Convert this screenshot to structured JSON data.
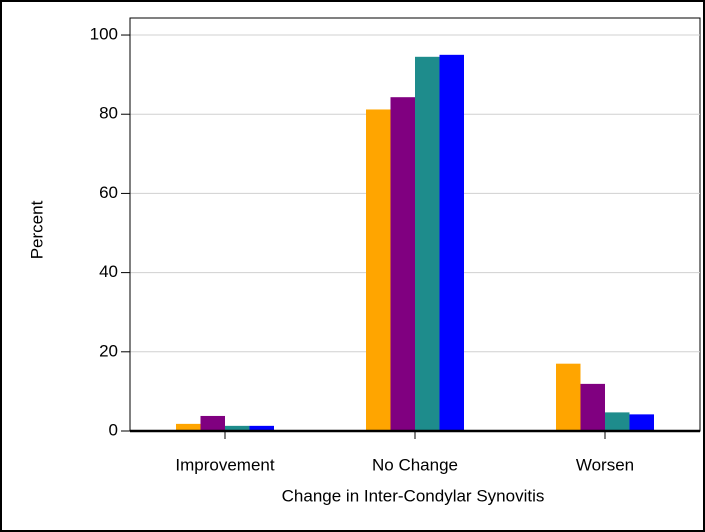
{
  "chart_data": {
    "type": "bar",
    "categories": [
      "Improvement",
      "No Change",
      "Worsen"
    ],
    "series": [
      {
        "color": "#ffa500",
        "values": [
          1.8,
          81.2,
          17.0
        ]
      },
      {
        "color": "#800080",
        "values": [
          3.8,
          84.3,
          11.9
        ]
      },
      {
        "color": "#1e8c8c",
        "values": [
          1.3,
          94.5,
          4.7
        ]
      },
      {
        "color": "#0000ff",
        "values": [
          1.3,
          95.0,
          4.2
        ]
      }
    ],
    "x_label": "Change in Inter-Condylar Synovitis",
    "y_label": "Percent",
    "ylim": [
      0,
      104.3
    ],
    "yticks": [
      0,
      20,
      40,
      60,
      80,
      100
    ],
    "grid": true
  }
}
